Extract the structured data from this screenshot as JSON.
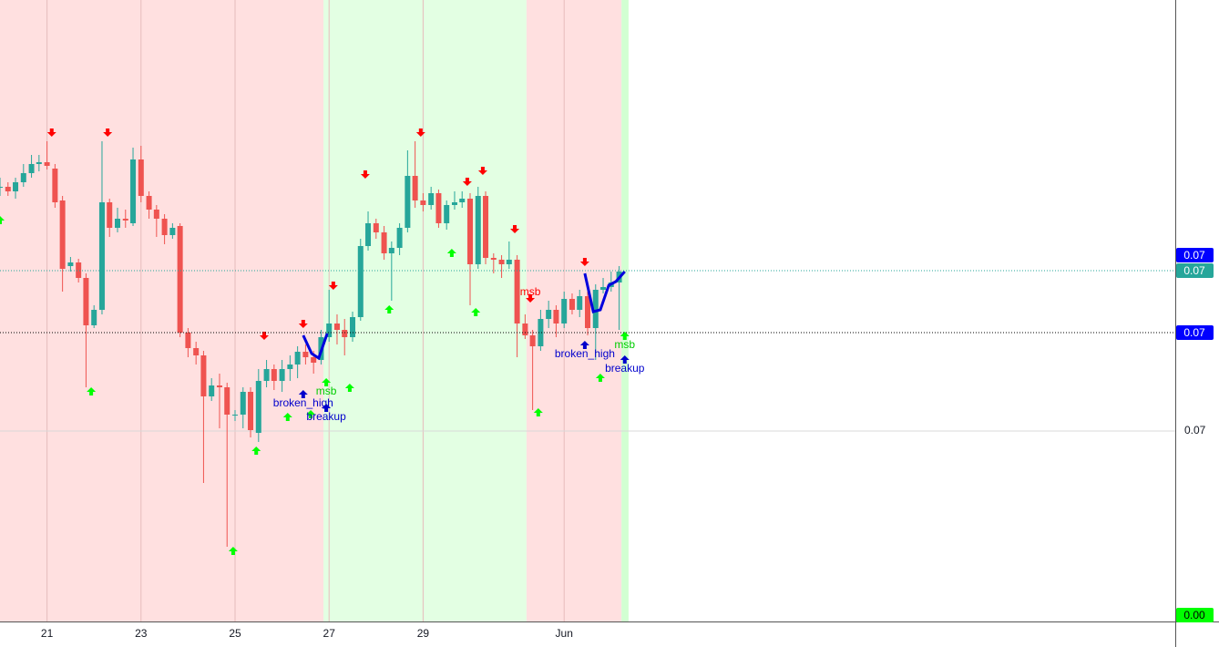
{
  "chart_data": {
    "type": "candlestick",
    "up_color": "#26a69a",
    "down_color": "#ef5350",
    "xlim": [
      20,
      45
    ],
    "xticks": [
      21,
      23,
      25,
      27,
      29,
      {
        "value": 32,
        "label": "Jun"
      }
    ],
    "ylim": [
      0.06582,
      0.07946
    ],
    "yticks": [
      0.07
    ],
    "x": [
      20,
      20.17,
      20.33,
      20.5,
      20.67,
      20.83,
      21,
      21.17,
      21.33,
      21.5,
      21.67,
      21.83,
      22,
      22.17,
      22.33,
      22.5,
      22.67,
      22.83,
      23,
      23.17,
      23.33,
      23.5,
      23.67,
      23.83,
      24,
      24.17,
      24.33,
      24.5,
      24.67,
      24.83,
      25,
      25.17,
      25.33,
      25.5,
      25.67,
      25.83,
      26,
      26.17,
      26.33,
      26.5,
      26.67,
      26.83,
      27,
      27.17,
      27.33,
      27.5,
      27.67,
      27.83,
      28,
      28.17,
      28.33,
      28.5,
      28.67,
      28.83,
      29,
      29.17,
      29.33,
      29.5,
      29.67,
      29.83,
      30,
      30.17,
      30.33,
      30.5,
      30.67,
      30.83,
      31,
      31.17,
      31.33,
      31.5,
      31.67,
      31.83,
      32,
      32.17,
      32.33,
      32.5,
      32.67,
      32.83,
      33,
      33.17
    ],
    "open": [
      0.07536,
      0.07536,
      0.07526,
      0.07546,
      0.07566,
      0.07586,
      0.0759,
      0.07576,
      0.07506,
      0.07362,
      0.0737,
      0.07336,
      0.07232,
      0.07266,
      0.07502,
      0.07446,
      0.07466,
      0.07456,
      0.07596,
      0.07516,
      0.07486,
      0.07466,
      0.0743,
      0.0745,
      0.07216,
      0.07182,
      0.07166,
      0.07076,
      0.071,
      0.07096,
      0.07036,
      0.07036,
      0.07086,
      0.06996,
      0.0711,
      0.07136,
      0.0711,
      0.07136,
      0.07146,
      0.07174,
      0.07162,
      0.07156,
      0.07206,
      0.07236,
      0.07222,
      0.07206,
      0.0725,
      0.07406,
      0.07456,
      0.07436,
      0.0739,
      0.07402,
      0.07446,
      0.0756,
      0.07506,
      0.07496,
      0.07522,
      0.07456,
      0.07496,
      0.07502,
      0.0751,
      0.07366,
      0.07516,
      0.0738,
      0.07376,
      0.07366,
      0.07376,
      0.07236,
      0.0721,
      0.07186,
      0.07246,
      0.07266,
      0.07236,
      0.0729,
      0.07266,
      0.07296,
      0.07226,
      0.0731,
      0.07316,
      0.07326
    ],
    "high": [
      0.07556,
      0.07546,
      0.07556,
      0.07586,
      0.07606,
      0.07606,
      0.07636,
      0.07586,
      0.07516,
      0.07382,
      0.07378,
      0.07346,
      0.07276,
      0.07636,
      0.0751,
      0.0749,
      0.07486,
      0.07622,
      0.07626,
      0.07526,
      0.07496,
      0.07476,
      0.07456,
      0.07456,
      0.07226,
      0.07196,
      0.07176,
      0.07116,
      0.07126,
      0.07106,
      0.07046,
      0.07096,
      0.07096,
      0.07136,
      0.07156,
      0.07146,
      0.07156,
      0.07166,
      0.07186,
      0.0719,
      0.07176,
      0.07222,
      0.0731,
      0.07256,
      0.07246,
      0.07262,
      0.07422,
      0.07482,
      0.07466,
      0.0745,
      0.07416,
      0.07456,
      0.07616,
      0.07636,
      0.07522,
      0.07536,
      0.0753,
      0.07506,
      0.07526,
      0.07526,
      0.07522,
      0.07536,
      0.07526,
      0.0739,
      0.07386,
      0.07416,
      0.07386,
      0.07256,
      0.07222,
      0.07266,
      0.07286,
      0.07276,
      0.07306,
      0.07302,
      0.0731,
      0.07306,
      0.07322,
      0.07336,
      0.0735,
      0.07362
    ],
    "low": [
      0.07516,
      0.07516,
      0.0751,
      0.07536,
      0.07556,
      0.0757,
      0.07574,
      0.0749,
      0.07306,
      0.0735,
      0.07326,
      0.07096,
      0.07226,
      0.07256,
      0.07426,
      0.07436,
      0.07446,
      0.0745,
      0.07502,
      0.07466,
      0.07426,
      0.0741,
      0.07422,
      0.07206,
      0.07162,
      0.07146,
      0.06886,
      0.07066,
      0.07006,
      0.06746,
      0.07022,
      0.07006,
      0.06986,
      0.06976,
      0.07096,
      0.0709,
      0.07086,
      0.0711,
      0.07116,
      0.07146,
      0.07126,
      0.07146,
      0.07196,
      0.0719,
      0.07166,
      0.07196,
      0.07242,
      0.07396,
      0.07422,
      0.07376,
      0.07286,
      0.07386,
      0.07436,
      0.0749,
      0.07482,
      0.07486,
      0.07446,
      0.07442,
      0.07486,
      0.0749,
      0.07276,
      0.07356,
      0.07366,
      0.07346,
      0.07336,
      0.07356,
      0.07162,
      0.07202,
      0.07046,
      0.07176,
      0.07226,
      0.07206,
      0.07226,
      0.07256,
      0.0725,
      0.0721,
      0.07156,
      0.07302,
      0.07306,
      0.07222
    ],
    "close": [
      0.07536,
      0.07526,
      0.07546,
      0.07566,
      0.07586,
      0.0759,
      0.07582,
      0.07502,
      0.07356,
      0.0737,
      0.07336,
      0.07232,
      0.07266,
      0.07502,
      0.07446,
      0.07466,
      0.07462,
      0.07596,
      0.07516,
      0.07486,
      0.07466,
      0.0743,
      0.07446,
      0.07216,
      0.07182,
      0.07166,
      0.07076,
      0.071,
      0.07096,
      0.07036,
      0.07036,
      0.07086,
      0.07002,
      0.0711,
      0.07136,
      0.0711,
      0.07136,
      0.07146,
      0.07174,
      0.07162,
      0.0715,
      0.07206,
      0.07236,
      0.07222,
      0.07206,
      0.0725,
      0.07406,
      0.07456,
      0.07436,
      0.0739,
      0.07402,
      0.07446,
      0.0756,
      0.07506,
      0.07496,
      0.07522,
      0.07456,
      0.07496,
      0.07502,
      0.0751,
      0.07366,
      0.07516,
      0.0738,
      0.07376,
      0.07366,
      0.07376,
      0.07236,
      0.0721,
      0.07186,
      0.07246,
      0.07266,
      0.07236,
      0.0729,
      0.07266,
      0.07296,
      0.07226,
      0.0731,
      0.07316,
      0.07326,
      0.0735
    ],
    "zones": [
      {
        "from": 20,
        "to": 26.88,
        "color": "#ffe0e0"
      },
      {
        "from": 26.88,
        "to": 31.2,
        "color": "#e3ffe3"
      },
      {
        "from": 31.2,
        "to": 33.22,
        "color": "#ffe0e0"
      },
      {
        "from": 33.22,
        "to": 33.37,
        "color": "#d2ffd2"
      }
    ],
    "hlines": [
      {
        "value": 0.07352,
        "color": "#26a69a"
      },
      {
        "value": 0.07216,
        "color": "#000000"
      }
    ],
    "price_labels": [
      {
        "value": 0.07386,
        "label": "0.07",
        "color": "#0000ff",
        "text_color": "#ffffff"
      },
      {
        "value": 0.07352,
        "label": "0.07",
        "color": "#26a69a",
        "text_color": "#ffffff"
      },
      {
        "value": 0.07216,
        "label": "0.07",
        "color": "#0000ff",
        "text_color": "#ffffff"
      },
      {
        "value": 0.06596,
        "label": "0.00",
        "color": "#00ff00",
        "text_color": "#000000"
      }
    ],
    "down_arrows": {
      "color": "#ff0000",
      "x": [
        21.1,
        22.29,
        25.62,
        26.45,
        27.09,
        27.77,
        28.95,
        29.94,
        30.27,
        30.95,
        31.28,
        32.44
      ],
      "y": [
        0.07646,
        0.07646,
        0.072,
        0.07226,
        0.0731,
        0.07554,
        0.07646,
        0.07538,
        0.07562,
        0.07434,
        0.07282,
        0.07362
      ]
    },
    "up_arrows": {
      "color": "#00ff00",
      "x": [
        20,
        21.94,
        24.96,
        25.45,
        26.12,
        26.61,
        26.94,
        27.44,
        28.28,
        29.61,
        30.12,
        31.45,
        32.77,
        33.29
      ],
      "y": [
        0.07472,
        0.07096,
        0.06746,
        0.06966,
        0.0704,
        0.07046,
        0.07116,
        0.07104,
        0.07276,
        0.074,
        0.0727,
        0.0705,
        0.07126,
        0.07218
      ]
    },
    "blue_arrows": {
      "color": "#0000cc",
      "x": [
        26.45,
        26.94,
        32.44,
        33.29
      ],
      "y": [
        0.0709,
        0.0706,
        0.07198,
        0.07166
      ]
    },
    "labels": [
      {
        "text": "msb",
        "x": 31.28,
        "y": 0.07304,
        "color": "#ff0000"
      },
      {
        "text": "msb",
        "x": 26.94,
        "y": 0.07086,
        "color": "#00cc00"
      },
      {
        "text": "msb",
        "x": 33.29,
        "y": 0.07188,
        "color": "#00cc00"
      },
      {
        "text": "broken_high",
        "x": 26.45,
        "y": 0.0706,
        "color": "#0000cc"
      },
      {
        "text": "broken_high",
        "x": 32.44,
        "y": 0.07168,
        "color": "#0000cc"
      },
      {
        "text": "breakup",
        "x": 26.94,
        "y": 0.0703,
        "color": "#0000cc"
      },
      {
        "text": "breakup",
        "x": 33.29,
        "y": 0.07136,
        "color": "#0000cc"
      }
    ],
    "zigzags": [
      {
        "color": "#0000dd",
        "x": [
          26.45,
          26.63,
          26.78,
          26.96
        ],
        "y": [
          0.0721,
          0.0717,
          0.0716,
          0.07214
        ]
      },
      {
        "color": "#0000dd",
        "x": [
          32.44,
          32.62,
          32.77,
          32.95,
          33.1,
          33.29
        ],
        "y": [
          0.07346,
          0.07262,
          0.07266,
          0.0732,
          0.07328,
          0.0735
        ]
      }
    ]
  }
}
